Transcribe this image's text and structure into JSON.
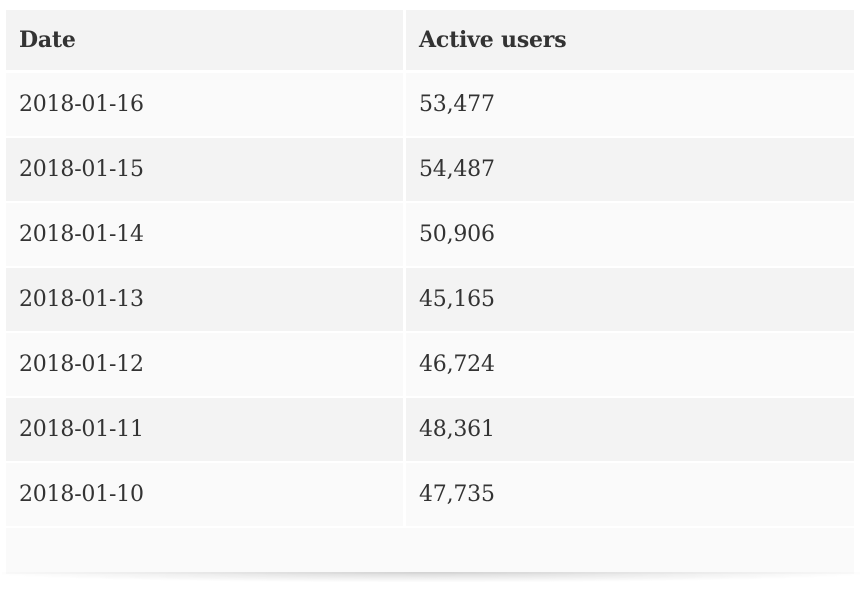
{
  "table": {
    "headers": {
      "date": "Date",
      "active_users": "Active users"
    },
    "rows": [
      {
        "date": "2018-01-16",
        "active_users": "53,477"
      },
      {
        "date": "2018-01-15",
        "active_users": "54,487"
      },
      {
        "date": "2018-01-14",
        "active_users": "50,906"
      },
      {
        "date": "2018-01-13",
        "active_users": "45,165"
      },
      {
        "date": "2018-01-12",
        "active_users": "46,724"
      },
      {
        "date": "2018-01-11",
        "active_users": "48,361"
      },
      {
        "date": "2018-01-10",
        "active_users": "47,735"
      }
    ]
  }
}
